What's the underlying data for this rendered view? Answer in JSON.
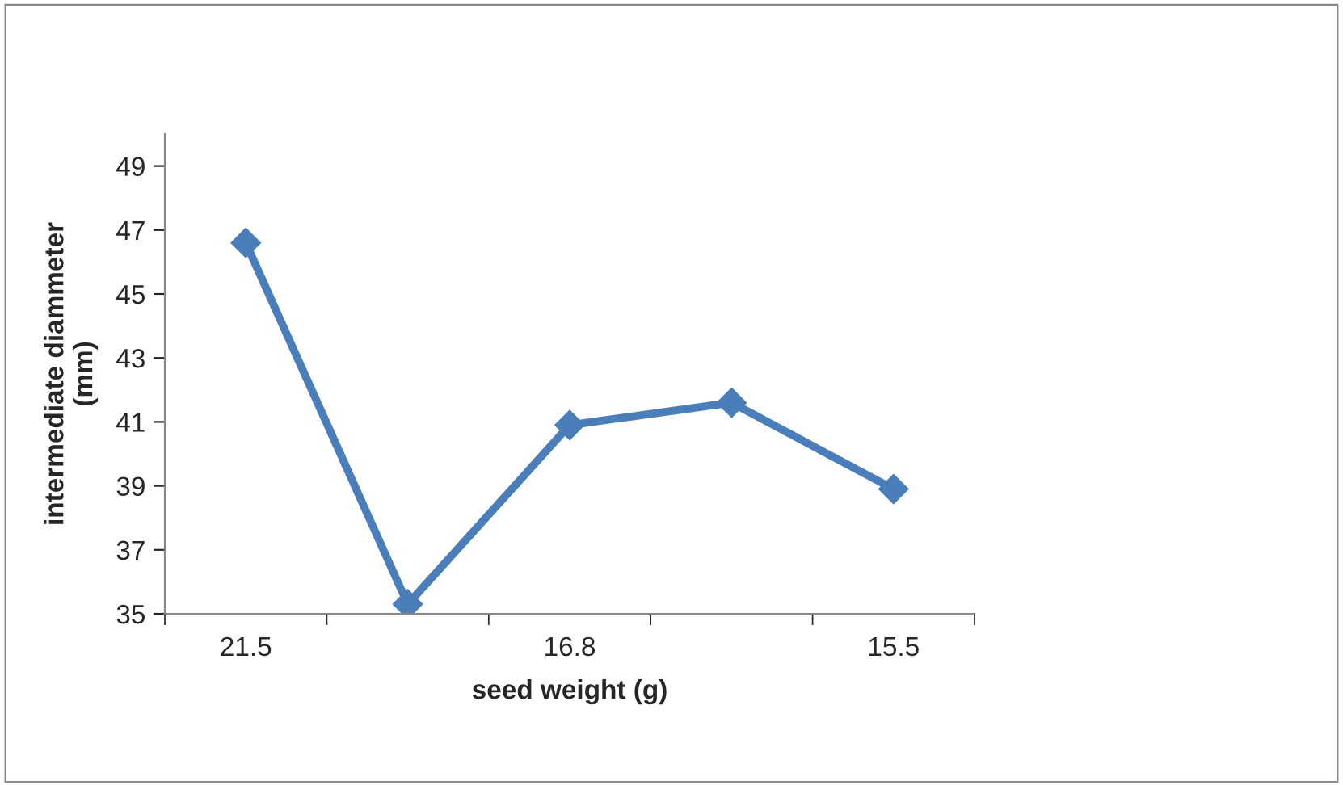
{
  "chart_data": {
    "type": "line",
    "xlabel": "seed weight (g)",
    "ylabel": "intermediate diammeter\n(mm)",
    "categories": [
      "21.5",
      null,
      "16.8",
      null,
      "15.5"
    ],
    "series": [
      {
        "color": "#4a7ebb",
        "values": [
          46.6,
          35.3,
          40.9,
          41.6,
          38.9
        ]
      }
    ],
    "ylim": [
      35,
      50
    ],
    "yticks": [
      35,
      37,
      39,
      41,
      43,
      45,
      47,
      49
    ],
    "marker": "diamond",
    "line_style": "solid",
    "grid": false,
    "legend": false
  }
}
